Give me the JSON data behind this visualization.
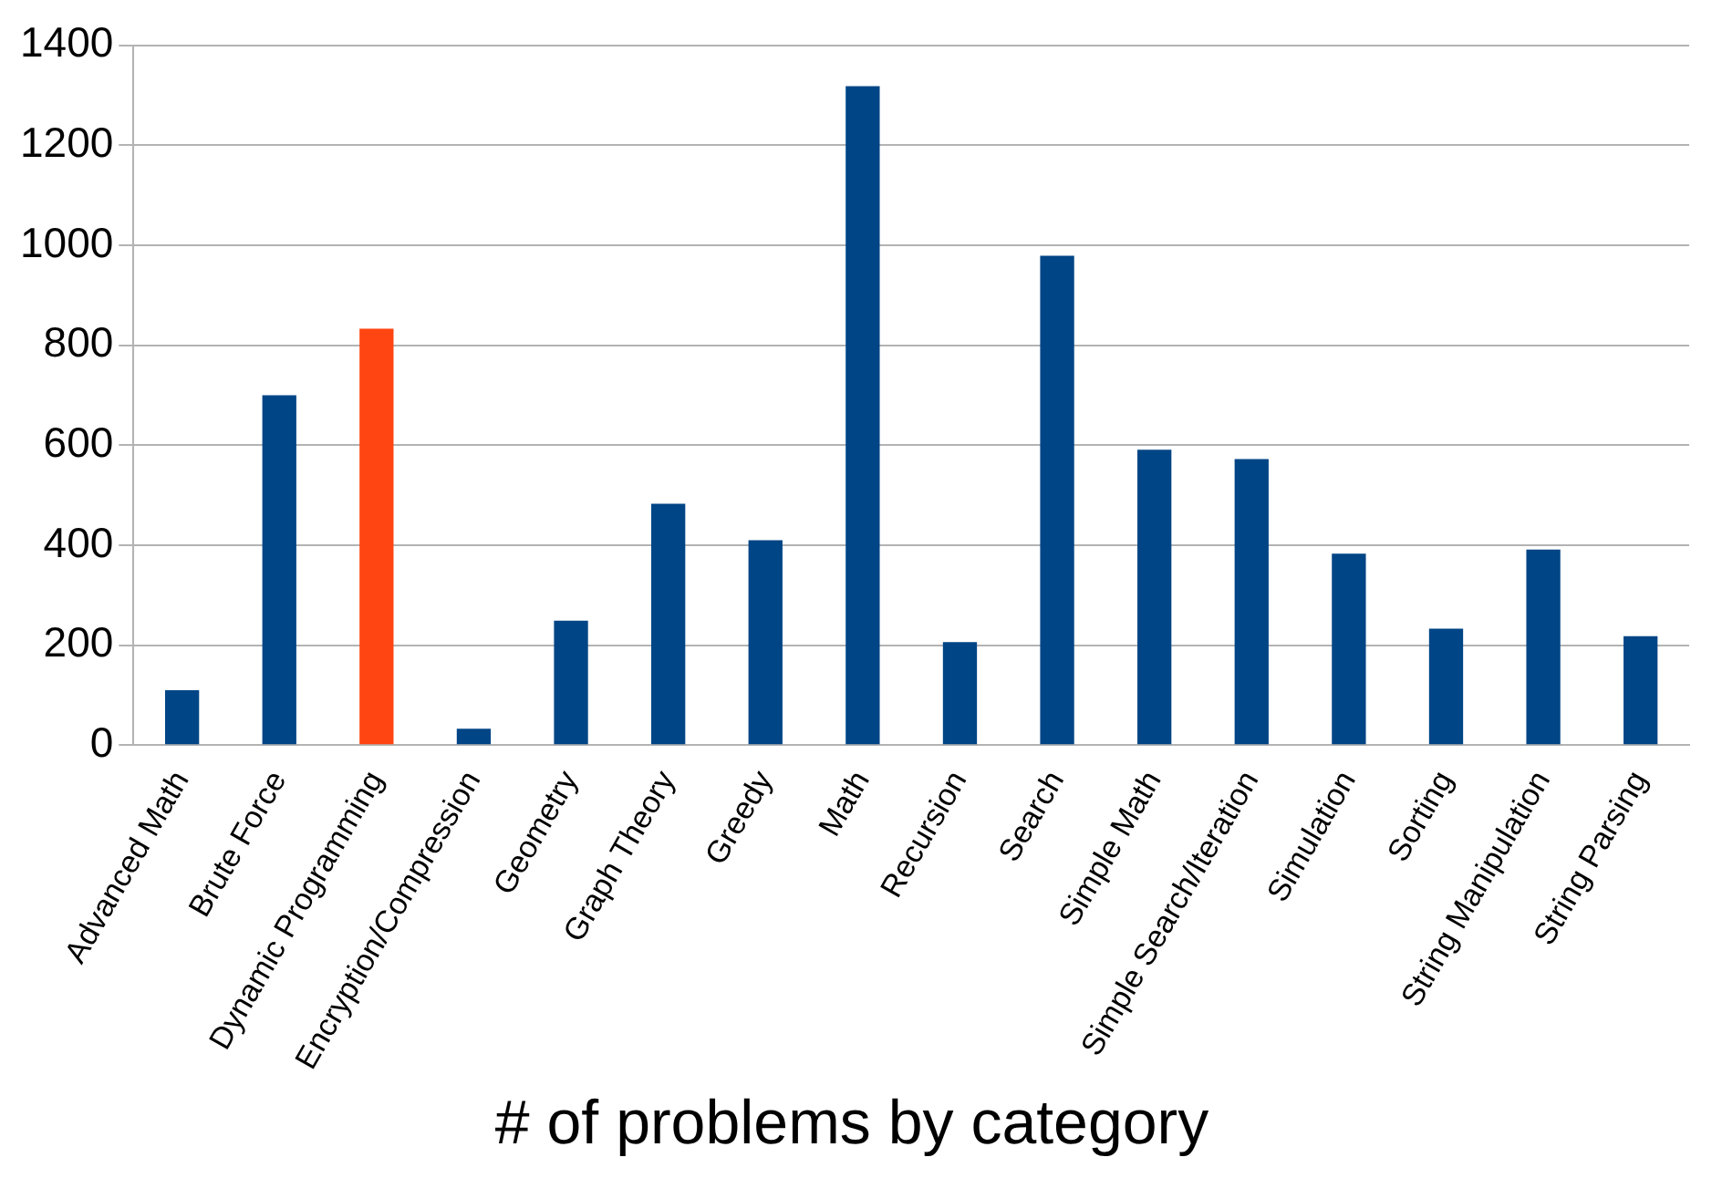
{
  "chart_data": {
    "type": "bar",
    "title": "# of problems by category",
    "categories": [
      "Advanced Math",
      "Brute Force",
      "Dynamic Programming",
      "Encryption/Compression",
      "Geometry",
      "Graph Theory",
      "Greedy",
      "Math",
      "Recursion",
      "Search",
      "Simple Math",
      "Simple Search/Iteration",
      "Simulation",
      "Sorting",
      "String Manipulation",
      "String Parsing"
    ],
    "values": [
      110,
      700,
      833,
      33,
      249,
      483,
      410,
      1318,
      206,
      979,
      591,
      572,
      383,
      233,
      391,
      218
    ],
    "colors": [
      "#004586",
      "#004586",
      "#ff4512",
      "#004586",
      "#004586",
      "#004586",
      "#004586",
      "#004586",
      "#004586",
      "#004586",
      "#004586",
      "#004586",
      "#004586",
      "#004586",
      "#004586",
      "#004586"
    ],
    "ylim": [
      0,
      1400
    ],
    "yticks": [
      0,
      200,
      400,
      600,
      800,
      1000,
      1200,
      1400
    ],
    "grid": "y"
  }
}
